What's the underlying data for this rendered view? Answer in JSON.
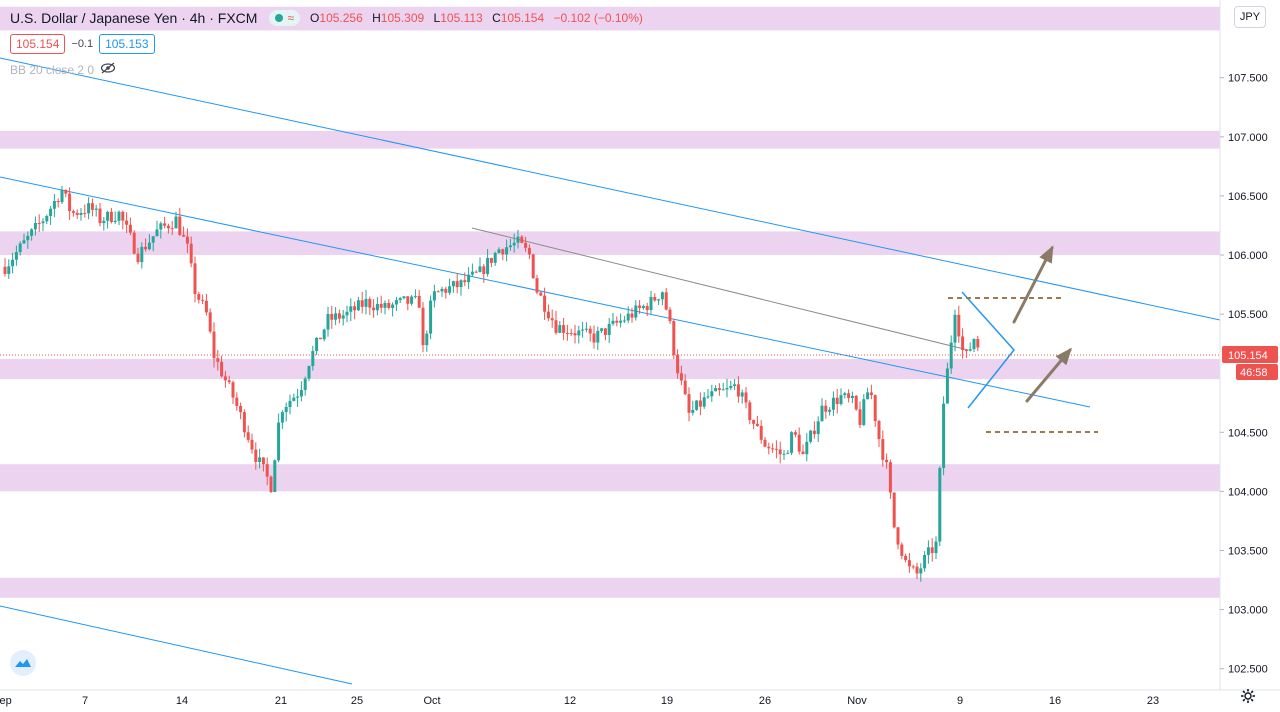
{
  "header": {
    "title": "U.S. Dollar / Japanese Yen · 4h · FXCM",
    "wave_icon": "≈",
    "ohlc": {
      "o_label": "O",
      "o": "105.256",
      "h_label": "H",
      "h": "105.309",
      "l_label": "L",
      "l": "105.113",
      "c_label": "C",
      "c": "105.154",
      "change": "−0.102 (−0.10%)"
    }
  },
  "prices": {
    "sell": "105.154",
    "spread": "−0.1",
    "buy": "105.153"
  },
  "indicator": {
    "label": "BB 20 close 2 0",
    "icon": "eye-off-icon"
  },
  "currency_button": "JPY",
  "colors": {
    "up": "#26a69a",
    "down": "#ef5350",
    "zone": "#e9cdee",
    "trend": "#2196f3",
    "arrow": "#8a7a66",
    "dashed": "#9c7a52"
  },
  "chart_data": {
    "type": "candlestick",
    "y_ticks": [
      "107.500",
      "107.000",
      "106.500",
      "106.000",
      "105.500",
      "104.500",
      "104.000",
      "103.500",
      "103.000",
      "102.500"
    ],
    "x_ticks": [
      "Sep",
      "7",
      "14",
      "21",
      "25",
      "Oct",
      "12",
      "19",
      "26",
      "Nov",
      "9",
      "16",
      "23"
    ],
    "ylim": [
      102.42,
      108.1
    ],
    "last_price": "105.154",
    "countdown": "46:58",
    "zones": [
      [
        107.9,
        108.1
      ],
      [
        106.9,
        107.05
      ],
      [
        106.0,
        106.2
      ],
      [
        104.95,
        105.12
      ],
      [
        104.0,
        104.23
      ],
      [
        103.1,
        103.27
      ]
    ],
    "path": [
      [
        0,
        105.9
      ],
      [
        1,
        106.1
      ],
      [
        2,
        106.3
      ],
      [
        3,
        106.55
      ],
      [
        3.5,
        106.35
      ],
      [
        4.5,
        106.4
      ],
      [
        5,
        106.3
      ],
      [
        6,
        106.35
      ],
      [
        7,
        106.0
      ],
      [
        8,
        106.2
      ],
      [
        9,
        106.3
      ],
      [
        9.6,
        106.05
      ],
      [
        10,
        105.7
      ],
      [
        10.6,
        105.5
      ],
      [
        11,
        105.15
      ],
      [
        12,
        104.8
      ],
      [
        12.5,
        104.6
      ],
      [
        13.2,
        104.3
      ],
      [
        14,
        104.05
      ],
      [
        14.5,
        104.7
      ],
      [
        15.5,
        104.85
      ],
      [
        16,
        105.1
      ],
      [
        17,
        105.45
      ],
      [
        18,
        105.5
      ],
      [
        19,
        105.6
      ],
      [
        20,
        105.55
      ],
      [
        21,
        105.6
      ],
      [
        21.8,
        105.6
      ],
      [
        22,
        105.2
      ],
      [
        22.5,
        105.65
      ],
      [
        23,
        105.7
      ],
      [
        24,
        105.75
      ],
      [
        25,
        105.85
      ],
      [
        26,
        106.05
      ],
      [
        27,
        106.1
      ],
      [
        27.6,
        106.0
      ],
      [
        28,
        105.7
      ],
      [
        29,
        105.4
      ],
      [
        30,
        105.35
      ],
      [
        31,
        105.3
      ],
      [
        32,
        105.4
      ],
      [
        33,
        105.5
      ],
      [
        34,
        105.6
      ],
      [
        34.6,
        105.7
      ],
      [
        35,
        105.4
      ],
      [
        35.3,
        105.1
      ],
      [
        36,
        104.65
      ],
      [
        37,
        104.8
      ],
      [
        38,
        104.85
      ],
      [
        38.5,
        104.9
      ],
      [
        39,
        104.7
      ],
      [
        40,
        104.4
      ],
      [
        41,
        104.3
      ],
      [
        41.5,
        104.5
      ],
      [
        42,
        104.3
      ],
      [
        43,
        104.7
      ],
      [
        44,
        104.8
      ],
      [
        44.6,
        104.75
      ],
      [
        45,
        104.6
      ],
      [
        45.5,
        104.9
      ],
      [
        46,
        104.45
      ],
      [
        46.4,
        104.2
      ],
      [
        46.8,
        103.7
      ],
      [
        47,
        103.6
      ],
      [
        47.5,
        103.35
      ],
      [
        48,
        103.3
      ],
      [
        48.5,
        103.45
      ],
      [
        49,
        103.55
      ],
      [
        49.4,
        104.75
      ],
      [
        50,
        105.55
      ],
      [
        50.5,
        105.1
      ],
      [
        51,
        105.3
      ],
      [
        51.3,
        105.2
      ]
    ]
  }
}
